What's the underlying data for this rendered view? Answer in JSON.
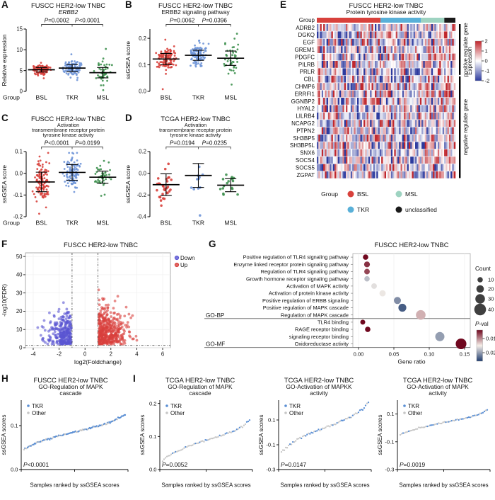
{
  "figure_title": "FUSCC and TCGA HER2-low TNBC multi-panel figure",
  "chart_data": [
    {
      "panel": "A",
      "type": "jitter",
      "dataset": "FUSCC HER2-low TNBC",
      "title": "ERBB2",
      "italic_title": true,
      "ylabel": "Relative expression",
      "ylim": [
        0,
        15
      ],
      "yticks": [
        15,
        10,
        5,
        0
      ],
      "ydec": 0,
      "xprefix": "Group",
      "categories": [
        "BSL",
        "TKR",
        "MSL"
      ],
      "colors": [
        "#d8413c",
        "#7096d8",
        "#3f9150"
      ],
      "n": [
        118,
        108,
        46
      ],
      "mean": [
        5.2,
        5.6,
        4.5
      ],
      "sd": [
        0.55,
        0.85,
        1.25
      ],
      "pvalues": [
        "P=0.0002",
        "P<0.0001"
      ]
    },
    {
      "panel": "B",
      "type": "jitter",
      "dataset": "FUSCC HER2-low TNBC",
      "title": "ERBB2 signaling pathway",
      "ylabel": "ssGSEA score",
      "ylim": [
        0,
        0.235
      ],
      "yticks": [
        0.2,
        0.1,
        0.0
      ],
      "ydec": 1,
      "xprefix": "",
      "categories": [
        "BSL",
        "TKR",
        "MSL"
      ],
      "colors": [
        "#d8413c",
        "#7096d8",
        "#3f9150"
      ],
      "n": [
        118,
        108,
        46
      ],
      "mean": [
        0.122,
        0.136,
        0.125
      ],
      "sd": [
        0.021,
        0.019,
        0.027
      ],
      "pvalues": [
        "P=0.0062",
        "P=0.0396"
      ]
    },
    {
      "panel": "C",
      "type": "jitter",
      "dataset": "FUSCC HER2-low TNBC",
      "title": [
        "Activation",
        "transmembrane receptor protein",
        "tyrosine kinase activity"
      ],
      "ylabel": "ssGSEA score",
      "ylim": [
        -0.2,
        0.1
      ],
      "yticks": [
        0.1,
        0.0,
        -0.1,
        -0.2
      ],
      "ydec": 1,
      "xprefix": "Group",
      "categories": [
        "BSL",
        "TKR",
        "MSL"
      ],
      "colors": [
        "#d8413c",
        "#7096d8",
        "#3f9150"
      ],
      "n": [
        118,
        108,
        46
      ],
      "mean": [
        -0.04,
        0.004,
        -0.018
      ],
      "sd": [
        0.045,
        0.036,
        0.028
      ],
      "pvalues": [
        "P<0.0001",
        "P=0.0199"
      ]
    },
    {
      "panel": "D",
      "type": "jitter",
      "dataset": "TCGA HER2-low TNBC",
      "title": [
        "Activation",
        "transmembrane receptor protein",
        "tyrosine kinase activity"
      ],
      "ylabel": "ssGSEA score",
      "ylim": [
        -0.4,
        0.2
      ],
      "yticks": [
        0.2,
        0.0,
        -0.2,
        -0.4
      ],
      "ydec": 1,
      "xprefix": "",
      "categories": [
        "BSL",
        "TKR",
        "MSL"
      ],
      "colors": [
        "#d8413c",
        "#7096d8",
        "#3f9150"
      ],
      "n": [
        30,
        11,
        17
      ],
      "mean": [
        -0.105,
        -0.02,
        -0.11
      ],
      "sd": [
        0.1,
        0.11,
        0.06
      ],
      "pvalues": [
        "P=0.0194",
        "P=0.0235"
      ]
    },
    {
      "panel": "E",
      "type": "heatmap",
      "dataset": "FUSCC HER2-low TNBC",
      "title": "Protein tyrosine kinase activity",
      "row_label": "Group",
      "genes": [
        "ADRB2",
        "DGKQ",
        "EGF",
        "GREM1",
        "PDGFC",
        "PILRB",
        "PRLR",
        "CBL",
        "CHMP6",
        "ERRFI1",
        "GGNBP2",
        "HYAL2",
        "LILRB4",
        "NCAPG2",
        "PTPN2",
        "SH3BP5",
        "SH3BP5L",
        "SNX6",
        "SOCS4",
        "SOCS5",
        "ZGPAT"
      ],
      "n_positive": 7,
      "cols": 86,
      "group_fracs": [
        0.46,
        0.29,
        0.17,
        0.08
      ],
      "group_colors": [
        "#d8413c",
        "#59b0d8",
        "#9ed3c1",
        "#1a1a1a"
      ],
      "legend_title": "Group",
      "legend": [
        [
          "BSL",
          "#d8413c"
        ],
        [
          "TKR",
          "#59b0d8"
        ],
        [
          "MSL",
          "#9ed3c1"
        ],
        [
          "unclassified",
          "#1a1a1a"
        ]
      ],
      "side_labels": [
        "positive regulate gene",
        "negative regulate gene"
      ],
      "colorbar_title": "Expression",
      "colorbar_ticks": [
        2,
        1,
        0,
        -1,
        -2
      ],
      "cell_colors": {
        "high": "#c0272d",
        "mid": "#ffffff",
        "low": "#2c3a9e"
      }
    },
    {
      "panel": "F",
      "type": "volcano",
      "dataset": "FUSCC HER2-low TNBC",
      "xlabel": "log2(Foldchange)",
      "ylabel": "-log10(FDR)",
      "xlim": [
        -4.6,
        6.6
      ],
      "xticks": [
        -4,
        -2,
        0,
        2,
        4,
        6
      ],
      "ylim": [
        0,
        52
      ],
      "yticks": [
        0,
        10,
        20,
        30,
        40,
        50
      ],
      "vlines": [
        -1,
        1
      ],
      "hline": 1.3,
      "legend": [
        [
          "Down",
          "#5a55d2"
        ],
        [
          "Up",
          "#d8403c"
        ]
      ],
      "n_down": 300,
      "n_up": 430
    },
    {
      "panel": "G",
      "type": "dotplot",
      "dataset": "FUSCC HER2-low TNBC",
      "xlabel": "Gene ratio",
      "xlim": [
        -0.008,
        0.158
      ],
      "xticks": [
        0,
        0.05,
        0.1,
        0.15
      ],
      "facets": [
        {
          "name": "GO-BP",
          "terms": [
            {
              "label": "Positive regulation of TLR4 signaling pathway",
              "ratio": 0.01,
              "count": 10,
              "p": 0.002
            },
            {
              "label": "Enzyme linked receptor protein signaling pathway",
              "ratio": 0.012,
              "count": 12,
              "p": 0.006
            },
            {
              "label": "Regulation of TLR4 signaling pathway",
              "ratio": 0.012,
              "count": 11,
              "p": 0.007
            },
            {
              "label": "Growth hormone receptor signaling pathway",
              "ratio": 0.012,
              "count": 10,
              "p": 0.018
            },
            {
              "label": "Activation of MAPK activity",
              "ratio": 0.022,
              "count": 11,
              "p": 0.016
            },
            {
              "label": "Activation of protein kinase activity",
              "ratio": 0.034,
              "count": 14,
              "p": 0.0155
            },
            {
              "label": "Positive regulation of ERBB signaling",
              "ratio": 0.055,
              "count": 18,
              "p": 0.021
            },
            {
              "label": "Positive regulation of MAPK cascade",
              "ratio": 0.062,
              "count": 22,
              "p": 0.024
            },
            {
              "label": "Regulation of MAPK cascade",
              "ratio": 0.088,
              "count": 30,
              "p": 0.012
            }
          ]
        },
        {
          "name": "GO-MF",
          "terms": [
            {
              "label": "TLR4 binding",
              "ratio": 0.006,
              "count": 8,
              "p": 0.003
            },
            {
              "label": "RAGE receptor binding",
              "ratio": 0.013,
              "count": 10,
              "p": 0.004
            },
            {
              "label": "signaling receptor binding",
              "ratio": 0.115,
              "count": 28,
              "p": 0.02
            },
            {
              "label": "Oxidoreductase activity",
              "ratio": 0.145,
              "count": 35,
              "p": 0.003
            }
          ]
        }
      ],
      "count_legend_title": "Count",
      "count_legend": [
        10,
        20,
        30,
        40
      ],
      "pval_legend_title": "P-val",
      "pval_ticks": [
        0.01,
        0.02
      ]
    },
    {
      "panel": "H",
      "type": "rank",
      "dataset": "FUSCC HER2-low TNBC",
      "title": [
        "GO-Regulation of MAPK",
        "cascade"
      ],
      "ylabel": "ssGSEA scores",
      "xlabel": "Samples ranked by ssGSEA scores",
      "ylim": [
        0,
        0.158
      ],
      "yticks": [
        0.1,
        0.0
      ],
      "ydec": 1,
      "start": 0.046,
      "end": 0.126,
      "n": 115,
      "pvalue": "P<0.0001",
      "legend": [
        [
          "TKR",
          "#5b8fd4"
        ],
        [
          "Other",
          "#c6c6c6"
        ]
      ],
      "tkr_base": 0.55,
      "tkr_slope": 0.4
    },
    {
      "panel": "I",
      "type": "rank",
      "dataset": "TCGA HER2-low TNBC",
      "title": [
        "GO-Regulation of MAPK",
        "cascade"
      ],
      "ylabel": "ssGSEA scores",
      "xlabel": "Samples ranked by ssGSEA scores",
      "ylim": [
        0,
        0.21
      ],
      "yticks": [
        0.2,
        0.1,
        0.0
      ],
      "ydec": 1,
      "start": 0.028,
      "end": 0.148,
      "n": 62,
      "pvalue": "P=0.0052",
      "legend": [
        [
          "TKR",
          "#5b8fd4"
        ],
        [
          "Other",
          "#c6c6c6"
        ]
      ],
      "tkr_base": 0.1,
      "tkr_slope": 0.55
    },
    {
      "panel": "I",
      "type": "rank",
      "dataset": "TCGA HER2-low TNBC",
      "title": [
        "GO-Activation of MAPKK",
        "activity"
      ],
      "ylabel": "ssGSEA scores",
      "xlabel": "Samples ranked by ssGSEA scores",
      "ylim": [
        -0.3,
        0.26
      ],
      "yticks": [
        0.1,
        -0.1,
        -0.3
      ],
      "ydec": 1,
      "start": -0.155,
      "end": 0.235,
      "n": 62,
      "pvalue": "P=0.0147",
      "legend": [
        [
          "TKR",
          "#5b8fd4"
        ],
        [
          "Other",
          "#c6c6c6"
        ]
      ],
      "tkr_base": 0.1,
      "tkr_slope": 0.55
    },
    {
      "panel": "I",
      "type": "rank",
      "dataset": "TCGA HER2-low TNBC",
      "title": [
        "GO-Activation of MAPK",
        "activity"
      ],
      "ylabel": "ssGSEA scores",
      "xlabel": "Samples ranked by ssGSEA scores",
      "ylim": [
        -0.3,
        0.2
      ],
      "yticks": [
        0.1,
        -0.1,
        -0.3
      ],
      "ydec": 1,
      "start": -0.05,
      "end": 0.128,
      "n": 62,
      "pvalue": "P=0.0019",
      "legend": [
        [
          "TKR",
          "#5b8fd4"
        ],
        [
          "Other",
          "#c6c6c6"
        ]
      ],
      "tkr_base": 0.1,
      "tkr_slope": 0.55
    }
  ]
}
